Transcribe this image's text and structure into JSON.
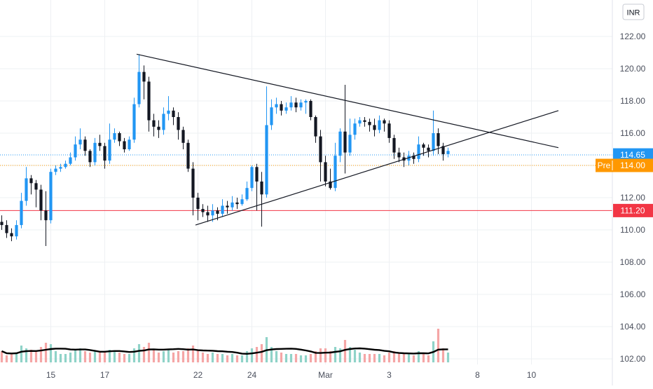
{
  "currency_label": "INR",
  "colors": {
    "up": "#2196f3",
    "down": "#131722",
    "vol_up": "#8fd3c8",
    "vol_down": "#f5a6a6",
    "grid": "#eef0f3",
    "axis_text": "#4a4f5c",
    "last_price": "#2196f3",
    "pre_market": "#ff9800",
    "support_line": "#f23645",
    "trendline": "#131722",
    "volume_ma": "#000000"
  },
  "chart_data": {
    "type": "candlestick",
    "title": "",
    "ylim": [
      101.6,
      123.2
    ],
    "y_ticks": [
      "122.00",
      "120.00",
      "118.00",
      "116.00",
      "114.00",
      "112.00",
      "110.00",
      "108.00",
      "106.00",
      "104.00",
      "102.00"
    ],
    "x_ticks": [
      {
        "label": "15",
        "bar": 10
      },
      {
        "label": "17",
        "bar": 21
      },
      {
        "label": "22",
        "bar": 40
      },
      {
        "label": "24",
        "bar": 51
      },
      {
        "label": "Mar",
        "bar": 66
      },
      {
        "label": "3",
        "bar": 79
      },
      {
        "label": "8",
        "bar": 97
      },
      {
        "label": "10",
        "bar": 108
      }
    ],
    "last_price": {
      "label": "114.65",
      "value": 114.65
    },
    "pre_market": {
      "tag": "Pre",
      "label": "114.00",
      "value": 114.0
    },
    "support_level": {
      "label": "111.20",
      "value": 111.2
    },
    "trendlines": [
      {
        "name": "upper",
        "from": {
          "bar": 27.5,
          "price": 120.9
        },
        "to": {
          "bar": 113.5,
          "price": 115.1
        }
      },
      {
        "name": "lower",
        "from": {
          "bar": 39.5,
          "price": 110.3
        },
        "to": {
          "bar": 113.5,
          "price": 117.4
        }
      }
    ],
    "candles": [
      [
        110.5,
        110.3,
        110.9,
        110.0,
        0.8
      ],
      [
        110.3,
        109.8,
        110.6,
        109.5,
        0.5
      ],
      [
        109.8,
        109.6,
        110.1,
        109.3,
        0.6
      ],
      [
        109.6,
        110.3,
        110.6,
        109.4,
        0.7
      ],
      [
        110.3,
        111.8,
        112.3,
        110.1,
        1.2
      ],
      [
        111.8,
        113.2,
        113.9,
        111.5,
        1.0
      ],
      [
        113.2,
        112.9,
        113.4,
        112.2,
        0.9
      ],
      [
        112.9,
        112.5,
        113.1,
        111.4,
        0.8
      ],
      [
        112.5,
        111.2,
        112.8,
        110.6,
        1.1
      ],
      [
        111.2,
        110.6,
        112.4,
        109.0,
        1.4
      ],
      [
        110.6,
        113.6,
        113.8,
        110.4,
        1.3
      ],
      [
        113.6,
        113.8,
        114.0,
        113.4,
        0.8
      ],
      [
        113.8,
        113.9,
        114.1,
        113.6,
        0.6
      ],
      [
        113.9,
        114.1,
        114.3,
        113.8,
        0.6
      ],
      [
        114.1,
        114.5,
        114.8,
        114.0,
        0.7
      ],
      [
        114.5,
        115.3,
        115.8,
        114.3,
        0.9
      ],
      [
        115.3,
        115.6,
        116.3,
        115.0,
        1.0
      ],
      [
        115.6,
        114.9,
        115.8,
        114.6,
        0.8
      ],
      [
        114.9,
        114.2,
        115.0,
        113.9,
        0.7
      ],
      [
        114.2,
        115.4,
        115.7,
        114.0,
        0.8
      ],
      [
        115.4,
        115.2,
        115.9,
        114.9,
        0.7
      ],
      [
        115.2,
        114.3,
        115.4,
        113.8,
        0.8
      ],
      [
        114.3,
        115.6,
        116.6,
        114.1,
        0.9
      ],
      [
        115.6,
        116.0,
        116.3,
        115.4,
        0.8
      ],
      [
        116.0,
        115.5,
        116.1,
        115.2,
        0.7
      ],
      [
        115.5,
        115.0,
        115.7,
        114.8,
        0.6
      ],
      [
        115.0,
        115.6,
        115.8,
        114.9,
        0.6
      ],
      [
        115.6,
        117.8,
        118.2,
        115.4,
        1.0
      ],
      [
        117.8,
        119.8,
        120.9,
        117.6,
        1.3
      ],
      [
        119.8,
        119.2,
        120.2,
        118.1,
        1.1
      ],
      [
        119.2,
        116.8,
        119.5,
        116.1,
        1.4
      ],
      [
        116.8,
        116.4,
        117.2,
        115.8,
        0.9
      ],
      [
        116.4,
        116.2,
        116.8,
        115.7,
        0.7
      ],
      [
        116.2,
        117.2,
        117.6,
        115.9,
        0.8
      ],
      [
        117.2,
        117.4,
        118.3,
        116.8,
        0.9
      ],
      [
        117.4,
        117.0,
        117.6,
        116.5,
        0.7
      ],
      [
        117.0,
        116.2,
        117.3,
        115.6,
        0.8
      ],
      [
        116.2,
        115.4,
        116.4,
        115.0,
        0.8
      ],
      [
        115.4,
        113.8,
        115.6,
        113.6,
        1.0
      ],
      [
        113.8,
        112.0,
        114.2,
        110.9,
        1.2
      ],
      [
        112.0,
        111.3,
        112.3,
        110.6,
        0.9
      ],
      [
        111.3,
        111.1,
        111.6,
        110.8,
        0.7
      ],
      [
        111.1,
        110.9,
        111.5,
        110.5,
        0.6
      ],
      [
        110.9,
        111.2,
        111.6,
        110.5,
        0.7
      ],
      [
        111.2,
        111.0,
        111.4,
        110.6,
        0.6
      ],
      [
        111.0,
        111.5,
        111.9,
        110.8,
        0.6
      ],
      [
        111.5,
        111.4,
        111.8,
        111.0,
        0.5
      ],
      [
        111.4,
        111.7,
        112.1,
        111.2,
        0.6
      ],
      [
        111.7,
        111.6,
        112.0,
        111.3,
        0.5
      ],
      [
        111.6,
        111.9,
        112.2,
        111.5,
        0.5
      ],
      [
        111.9,
        112.6,
        113.0,
        111.8,
        0.8
      ],
      [
        112.6,
        113.9,
        114.0,
        112.4,
        1.0
      ],
      [
        113.9,
        113.0,
        114.1,
        111.2,
        1.1
      ],
      [
        113.0,
        112.2,
        113.6,
        110.2,
        1.3
      ],
      [
        112.2,
        116.5,
        118.9,
        112.0,
        1.8
      ],
      [
        116.5,
        117.6,
        118.1,
        116.2,
        1.1
      ],
      [
        117.6,
        117.8,
        118.2,
        117.2,
        0.8
      ],
      [
        117.8,
        117.4,
        118.0,
        117.1,
        0.7
      ],
      [
        117.4,
        117.6,
        117.9,
        117.2,
        0.6
      ],
      [
        117.6,
        117.9,
        118.3,
        117.4,
        0.6
      ],
      [
        117.9,
        117.6,
        118.2,
        117.3,
        0.6
      ],
      [
        117.6,
        117.9,
        118.1,
        117.4,
        0.5
      ],
      [
        117.9,
        118.0,
        118.1,
        117.2,
        0.5
      ],
      [
        118.0,
        117.0,
        118.1,
        116.8,
        0.6
      ],
      [
        117.0,
        115.8,
        117.1,
        115.4,
        0.8
      ],
      [
        115.8,
        114.2,
        116.2,
        113.0,
        1.0
      ],
      [
        114.2,
        113.0,
        114.6,
        112.7,
        1.0
      ],
      [
        113.0,
        112.6,
        113.8,
        112.5,
        0.8
      ],
      [
        112.6,
        114.6,
        115.4,
        112.4,
        1.1
      ],
      [
        114.6,
        116.1,
        116.3,
        114.2,
        1.0
      ],
      [
        116.1,
        114.8,
        119.0,
        113.5,
        1.6
      ],
      [
        114.8,
        115.9,
        116.9,
        114.6,
        1.1
      ],
      [
        115.9,
        116.6,
        116.9,
        115.6,
        0.9
      ],
      [
        116.6,
        116.8,
        117.0,
        116.4,
        0.7
      ],
      [
        116.8,
        116.7,
        117.0,
        116.4,
        0.6
      ],
      [
        116.7,
        116.5,
        116.9,
        116.1,
        0.6
      ],
      [
        116.5,
        116.2,
        116.9,
        115.8,
        0.6
      ],
      [
        116.2,
        116.8,
        117.1,
        116.0,
        0.6
      ],
      [
        116.8,
        116.6,
        116.9,
        116.1,
        0.5
      ],
      [
        116.6,
        115.7,
        116.8,
        115.4,
        0.7
      ],
      [
        115.7,
        114.8,
        115.9,
        114.4,
        0.8
      ],
      [
        114.8,
        114.5,
        115.1,
        114.2,
        0.7
      ],
      [
        114.5,
        114.3,
        114.8,
        113.9,
        0.7
      ],
      [
        114.3,
        114.6,
        114.9,
        114.0,
        0.6
      ],
      [
        114.6,
        114.4,
        114.8,
        114.1,
        0.5
      ],
      [
        114.4,
        115.3,
        115.8,
        114.2,
        0.8
      ],
      [
        115.3,
        115.1,
        115.4,
        114.6,
        0.6
      ],
      [
        115.1,
        114.9,
        115.3,
        114.5,
        0.5
      ],
      [
        114.9,
        116.0,
        117.4,
        114.6,
        1.5
      ],
      [
        116.0,
        115.2,
        116.3,
        114.7,
        2.4
      ],
      [
        115.2,
        114.7,
        115.4,
        114.3,
        1.0
      ],
      [
        114.7,
        114.9,
        115.1,
        114.5,
        0.7
      ]
    ]
  }
}
